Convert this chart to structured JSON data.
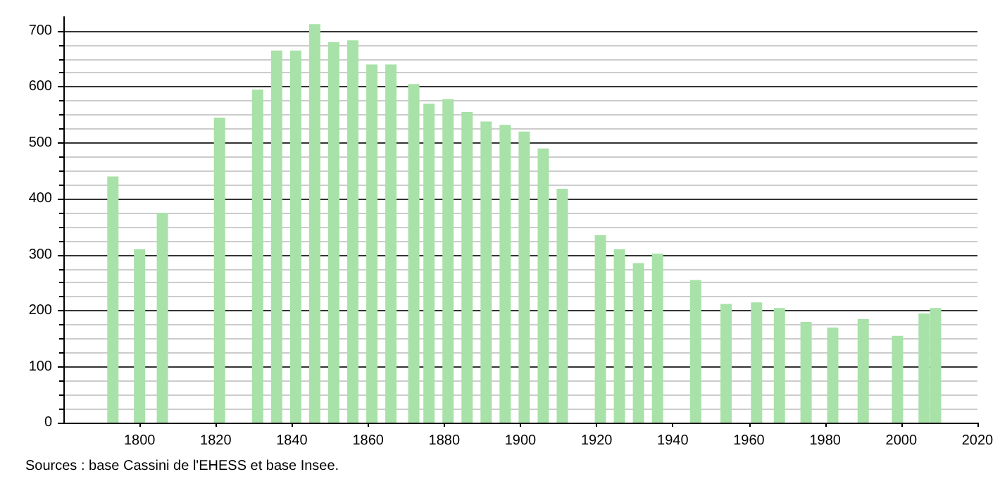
{
  "chart_data": {
    "type": "bar",
    "x": [
      1793,
      1800,
      1806,
      1821,
      1831,
      1836,
      1841,
      1846,
      1851,
      1856,
      1861,
      1866,
      1872,
      1876,
      1881,
      1886,
      1891,
      1896,
      1901,
      1906,
      1911,
      1921,
      1926,
      1931,
      1936,
      1946,
      1954,
      1962,
      1968,
      1975,
      1982,
      1990,
      1999,
      2006,
      2009
    ],
    "values": [
      440,
      310,
      375,
      545,
      595,
      665,
      665,
      712,
      680,
      683,
      640,
      640,
      605,
      570,
      578,
      555,
      538,
      532,
      520,
      490,
      418,
      335,
      310,
      285,
      302,
      255,
      212,
      215,
      205,
      180,
      170,
      185,
      155,
      195,
      205
    ],
    "color": "#a8e2a8",
    "xlim": [
      1780,
      2020
    ],
    "xticks": [
      1800,
      1820,
      1840,
      1860,
      1880,
      1900,
      1920,
      1940,
      1960,
      1980,
      2000,
      2020
    ],
    "ylim": [
      0,
      725
    ],
    "yticks": [
      0,
      100,
      200,
      300,
      400,
      500,
      600,
      700
    ],
    "grid": "y",
    "annotations": [
      "Sources : base Cassini de l'EHESS et base Insee."
    ]
  }
}
